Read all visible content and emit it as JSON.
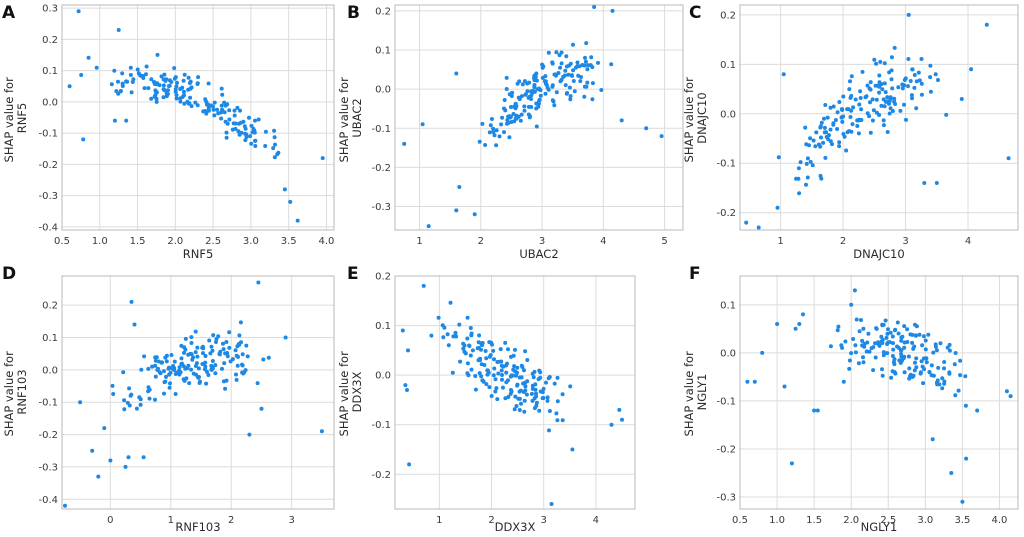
{
  "figure": {
    "ylabel_prefix": "SHAP value for",
    "point_color": "#1e88e5"
  },
  "chart_data": [
    {
      "type": "scatter",
      "letter": "A",
      "feature": "RNF5",
      "xlabel": "RNF5",
      "ylabel": "SHAP value for RNF5",
      "xlim": [
        0.5,
        4.1
      ],
      "ylim": [
        -0.41,
        0.31
      ],
      "xticks": [
        0.5,
        1.0,
        1.5,
        2.0,
        2.5,
        3.0,
        3.5,
        4.0
      ],
      "xtick_labels": [
        "0.5",
        "1.0",
        "1.5",
        "2.0",
        "2.5",
        "3.0",
        "3.5",
        "4.0"
      ],
      "yticks": [
        0.3,
        0.2,
        0.1,
        0.0,
        -0.1,
        -0.2,
        -0.3,
        -0.4
      ],
      "ytick_labels": [
        "0.3",
        "0.2",
        "0.1",
        "0.0",
        "-0.1",
        "-0.2",
        "-0.3",
        "-0.4"
      ],
      "trend": {
        "xmin": 0.6,
        "xmax": 3.75,
        "anchors": [
          [
            0.6,
            0.08
          ],
          [
            1.5,
            0.08
          ],
          [
            2.0,
            0.04
          ],
          [
            2.5,
            -0.02
          ],
          [
            3.0,
            -0.1
          ],
          [
            3.6,
            -0.17
          ]
        ],
        "noise": 0.032,
        "n": 175,
        "seed": 11
      },
      "extra_points": [
        [
          0.72,
          0.29
        ],
        [
          0.78,
          -0.12
        ],
        [
          1.25,
          0.23
        ],
        [
          3.45,
          -0.28
        ],
        [
          3.52,
          -0.32
        ],
        [
          3.62,
          -0.38
        ],
        [
          3.95,
          -0.18
        ],
        [
          0.6,
          0.05
        ],
        [
          1.2,
          -0.06
        ],
        [
          1.35,
          -0.06
        ]
      ]
    },
    {
      "type": "scatter",
      "letter": "B",
      "feature": "UBAC2",
      "xlabel": "UBAC2",
      "ylabel": "SHAP value for UBAC2",
      "xlim": [
        0.6,
        5.3
      ],
      "ylim": [
        -0.36,
        0.215
      ],
      "xticks": [
        1,
        2,
        3,
        4,
        5
      ],
      "xtick_labels": [
        "1",
        "2",
        "3",
        "4",
        "5"
      ],
      "yticks": [
        0.2,
        0.1,
        0.0,
        -0.1,
        -0.2,
        -0.3
      ],
      "ytick_labels": [
        "0.2",
        "0.1",
        "0.0",
        "-0.1",
        "-0.2",
        "-0.3"
      ],
      "trend": {
        "xmin": 1.7,
        "xmax": 4.3,
        "anchors": [
          [
            1.7,
            -0.14
          ],
          [
            2.2,
            -0.1
          ],
          [
            2.7,
            -0.03
          ],
          [
            3.2,
            0.03
          ],
          [
            3.7,
            0.05
          ],
          [
            4.3,
            0.06
          ]
        ],
        "noise": 0.035,
        "n": 175,
        "seed": 23
      },
      "extra_points": [
        [
          0.75,
          -0.14
        ],
        [
          1.05,
          -0.09
        ],
        [
          1.15,
          -0.35
        ],
        [
          1.6,
          -0.31
        ],
        [
          1.65,
          -0.25
        ],
        [
          1.9,
          -0.32
        ],
        [
          4.7,
          -0.1
        ],
        [
          4.95,
          -0.12
        ],
        [
          3.85,
          0.21
        ],
        [
          4.15,
          0.2
        ],
        [
          4.3,
          -0.08
        ],
        [
          1.6,
          0.04
        ]
      ]
    },
    {
      "type": "scatter",
      "letter": "C",
      "feature": "DNAJC10",
      "xlabel": "DNAJC10",
      "ylabel": "SHAP value for DNAJC10",
      "xlim": [
        0.35,
        4.8
      ],
      "ylim": [
        -0.235,
        0.22
      ],
      "xticks": [
        1,
        2,
        3,
        4
      ],
      "xtick_labels": [
        "1",
        "2",
        "3",
        "4"
      ],
      "yticks": [
        0.2,
        0.1,
        0.0,
        -0.1,
        -0.2
      ],
      "ytick_labels": [
        "0.2",
        "0.1",
        "0.0",
        "-0.1",
        "-0.2"
      ],
      "trend": {
        "xmin": 0.8,
        "xmax": 3.8,
        "anchors": [
          [
            0.8,
            -0.15
          ],
          [
            1.5,
            -0.07
          ],
          [
            2.0,
            -0.01
          ],
          [
            2.5,
            0.03
          ],
          [
            3.0,
            0.05
          ],
          [
            3.8,
            0.08
          ]
        ],
        "noise": 0.035,
        "n": 175,
        "seed": 37
      },
      "extra_points": [
        [
          0.45,
          -0.22
        ],
        [
          0.65,
          -0.23
        ],
        [
          0.95,
          -0.19
        ],
        [
          1.05,
          0.08
        ],
        [
          3.05,
          0.2
        ],
        [
          4.3,
          0.18
        ],
        [
          4.65,
          -0.09
        ],
        [
          3.3,
          -0.14
        ],
        [
          3.5,
          -0.14
        ],
        [
          3.9,
          0.03
        ],
        [
          4.05,
          0.09
        ]
      ]
    },
    {
      "type": "scatter",
      "letter": "D",
      "feature": "RNF103",
      "xlabel": "RNF103",
      "ylabel": "SHAP value for RNF103",
      "xlim": [
        -0.8,
        3.7
      ],
      "ylim": [
        -0.43,
        0.29
      ],
      "xticks": [
        0,
        1,
        2,
        3
      ],
      "xtick_labels": [
        "0",
        "1",
        "2",
        "3"
      ],
      "yticks": [
        0.2,
        0.1,
        0.0,
        -0.1,
        -0.2,
        -0.3,
        -0.4
      ],
      "ytick_labels": [
        "0.2",
        "0.1",
        "0.0",
        "-0.1",
        "-0.2",
        "-0.3",
        "-0.4"
      ],
      "trend": {
        "xmin": -0.2,
        "xmax": 2.8,
        "anchors": [
          [
            -0.2,
            -0.1
          ],
          [
            0.3,
            -0.06
          ],
          [
            0.8,
            -0.02
          ],
          [
            1.3,
            0.02
          ],
          [
            2.0,
            0.04
          ],
          [
            2.8,
            0.06
          ]
        ],
        "noise": 0.04,
        "n": 170,
        "seed": 51
      },
      "extra_points": [
        [
          -0.75,
          -0.42
        ],
        [
          -0.5,
          -0.1
        ],
        [
          -0.3,
          -0.25
        ],
        [
          -0.2,
          -0.33
        ],
        [
          0.0,
          -0.28
        ],
        [
          0.35,
          0.21
        ],
        [
          0.4,
          0.14
        ],
        [
          0.3,
          -0.27
        ],
        [
          0.55,
          -0.27
        ],
        [
          2.45,
          0.27
        ],
        [
          2.5,
          -0.12
        ],
        [
          2.3,
          -0.2
        ],
        [
          3.5,
          -0.19
        ],
        [
          2.9,
          0.1
        ],
        [
          -0.1,
          -0.18
        ],
        [
          0.25,
          -0.3
        ]
      ]
    },
    {
      "type": "scatter",
      "letter": "E",
      "feature": "DDX3X",
      "xlabel": "DDX3X",
      "ylabel": "SHAP value for DDX3X",
      "xlim": [
        0.15,
        4.75
      ],
      "ylim": [
        -0.27,
        0.2
      ],
      "xticks": [
        1,
        2,
        3,
        4
      ],
      "xtick_labels": [
        "1",
        "2",
        "3",
        "4"
      ],
      "yticks": [
        0.2,
        0.1,
        0.0,
        -0.1,
        -0.2
      ],
      "ytick_labels": [
        "0.2",
        "0.1",
        "0.0",
        "-0.1",
        "-0.2"
      ],
      "trend": {
        "xmin": 0.7,
        "xmax": 3.9,
        "anchors": [
          [
            0.7,
            0.1
          ],
          [
            1.3,
            0.06
          ],
          [
            2.0,
            0.02
          ],
          [
            2.5,
            -0.01
          ],
          [
            3.0,
            -0.04
          ],
          [
            3.9,
            -0.09
          ]
        ],
        "noise": 0.03,
        "n": 175,
        "seed": 67
      },
      "extra_points": [
        [
          0.35,
          -0.02
        ],
        [
          0.38,
          -0.03
        ],
        [
          0.4,
          0.05
        ],
        [
          0.42,
          -0.18
        ],
        [
          0.7,
          0.18
        ],
        [
          3.15,
          -0.26
        ],
        [
          4.3,
          -0.1
        ],
        [
          4.45,
          -0.07
        ],
        [
          4.5,
          -0.09
        ],
        [
          3.55,
          -0.15
        ],
        [
          0.3,
          0.09
        ]
      ]
    },
    {
      "type": "scatter",
      "letter": "F",
      "feature": "NGLY1",
      "xlabel": "NGLY1",
      "ylabel": "SHAP value for NGLY1",
      "xlim": [
        0.5,
        4.25
      ],
      "ylim": [
        -0.325,
        0.16
      ],
      "xticks": [
        0.5,
        1.0,
        1.5,
        2.0,
        2.5,
        3.0,
        3.5,
        4.0
      ],
      "xtick_labels": [
        "0.5",
        "1.0",
        "1.5",
        "2.0",
        "2.5",
        "3.0",
        "3.5",
        "4.0"
      ],
      "yticks": [
        0.1,
        0.0,
        -0.1,
        -0.2,
        -0.3
      ],
      "ytick_labels": [
        "0.1",
        "0.0",
        "-0.1",
        "-0.2",
        "-0.3"
      ],
      "trend": {
        "xmin": 1.5,
        "xmax": 3.9,
        "anchors": [
          [
            1.5,
            0.03
          ],
          [
            2.0,
            0.02
          ],
          [
            2.5,
            0.01
          ],
          [
            3.0,
            -0.01
          ],
          [
            3.5,
            -0.04
          ],
          [
            3.9,
            -0.06
          ]
        ],
        "noise": 0.03,
        "n": 165,
        "seed": 79
      },
      "extra_points": [
        [
          0.6,
          -0.06
        ],
        [
          0.7,
          -0.06
        ],
        [
          0.8,
          0.0
        ],
        [
          1.0,
          0.06
        ],
        [
          1.1,
          -0.07
        ],
        [
          1.2,
          -0.23
        ],
        [
          1.25,
          0.05
        ],
        [
          1.3,
          0.06
        ],
        [
          1.45,
          0.16
        ],
        [
          1.5,
          -0.12
        ],
        [
          1.55,
          -0.12
        ],
        [
          1.9,
          -0.06
        ],
        [
          2.0,
          0.1
        ],
        [
          2.05,
          0.13
        ],
        [
          3.1,
          -0.18
        ],
        [
          3.35,
          -0.25
        ],
        [
          3.5,
          -0.31
        ],
        [
          3.55,
          -0.22
        ],
        [
          4.1,
          -0.08
        ],
        [
          4.15,
          -0.09
        ],
        [
          3.7,
          -0.12
        ],
        [
          1.35,
          0.08
        ]
      ]
    }
  ]
}
